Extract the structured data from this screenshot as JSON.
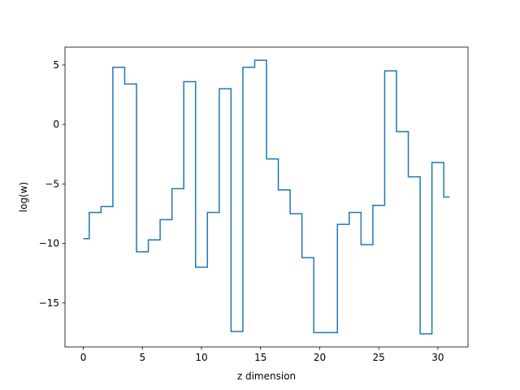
{
  "chart_data": {
    "type": "line",
    "drawstyle": "steps-mid",
    "title": "",
    "xlabel": "z dimension",
    "ylabel": "log(w)",
    "xlim": [
      -1.55,
      32.55
    ],
    "ylim": [
      -18.7,
      6.5
    ],
    "xticks": [
      0,
      5,
      10,
      15,
      20,
      25,
      30
    ],
    "yticks": [
      5,
      0,
      -5,
      -10,
      -15
    ],
    "ytick_labels": [
      "5",
      "0",
      "−5",
      "−10",
      "−15"
    ],
    "grid": false,
    "color": "#1f77b4",
    "series": [
      {
        "x": [
          0,
          1,
          2,
          3,
          4,
          5,
          6,
          7,
          8,
          9,
          10,
          11,
          12,
          13,
          14,
          15,
          16,
          17,
          18,
          19,
          20,
          21,
          22,
          23,
          24,
          25,
          26,
          27,
          28,
          29,
          30,
          31
        ],
        "values": [
          -9.6,
          -7.4,
          -6.9,
          4.8,
          3.4,
          -10.7,
          -9.7,
          -8.0,
          -5.4,
          3.6,
          -12.0,
          -7.4,
          3.0,
          -17.4,
          4.8,
          5.4,
          -2.9,
          -5.5,
          -7.5,
          -11.2,
          -17.5,
          -17.5,
          -8.4,
          -7.4,
          -10.1,
          -6.8,
          4.5,
          -0.6,
          -4.4,
          -17.6,
          -3.2,
          -6.1
        ]
      }
    ]
  }
}
